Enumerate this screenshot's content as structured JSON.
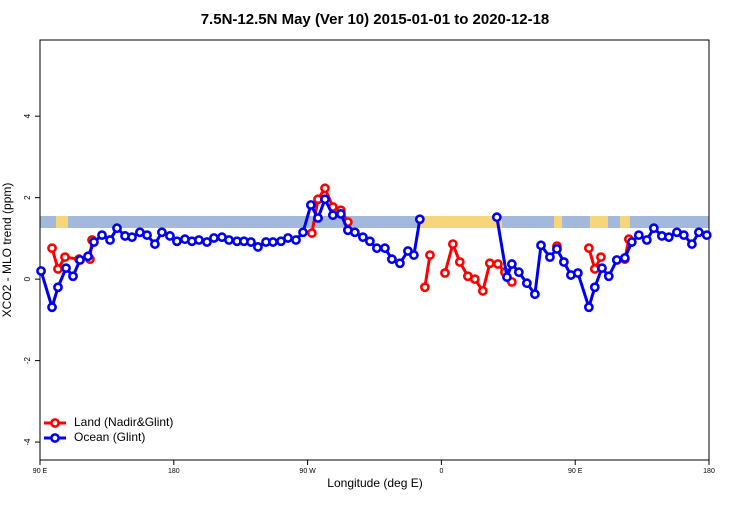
{
  "chart_data": {
    "type": "line",
    "title": "7.5N-12.5N May (Ver 10)   2015-01-01 to 2020-12-18",
    "x_label": "Longitude (deg E)",
    "y_label": "XCO2 - MLO trend (ppm)",
    "xlim": [
      90,
      540
    ],
    "xticks": [
      {
        "value": 90,
        "label": "90 E"
      },
      {
        "value": 180,
        "label": "180"
      },
      {
        "value": 270,
        "label": "90 W"
      },
      {
        "value": 360,
        "label": "0"
      },
      {
        "value": 450,
        "label": "90 E"
      },
      {
        "value": 540,
        "label": "180"
      }
    ],
    "ylim": [
      -4.44,
      5.87
    ],
    "yticks": [
      -4,
      -2,
      0,
      2,
      4
    ],
    "legend": "bottom-left",
    "series": [
      {
        "name": "Land (Nadir&Glint)",
        "color": "#ff0000",
        "x": [
          98.1,
          102.1,
          106.8,
          116.2,
          123.6,
          125.0,
          null,
          272.9,
          277.0,
          281.7,
          287.0,
          292.4,
          297.1,
          null,
          348.9,
          352.3,
          null,
          362.4,
          367.7,
          372.4,
          377.8,
          382.5,
          387.9,
          392.6,
          398.0,
          402.7,
          407.4,
          null,
          437.7,
          null,
          459.2,
          463.2,
          467.3,
          null,
          483.4,
          486.1
        ],
        "values": [
          0.76,
          0.25,
          0.54,
          0.49,
          0.49,
          0.96,
          null,
          1.13,
          1.96,
          2.23,
          1.77,
          1.69,
          1.4,
          null,
          -0.2,
          0.59,
          null,
          0.15,
          0.86,
          0.42,
          0.07,
          0.0,
          -0.29,
          0.39,
          0.37,
          0.17,
          -0.07,
          null,
          0.81,
          null,
          0.76,
          0.25,
          0.54,
          null,
          0.49,
          0.98
        ]
      },
      {
        "name": "Ocean (Glint)",
        "color": "#0000ee",
        "x": [
          90.7,
          98.1,
          102.1,
          107.5,
          112.2,
          116.9,
          122.3,
          126.3,
          131.7,
          137.1,
          141.8,
          147.2,
          151.9,
          157.2,
          162.0,
          167.3,
          172.0,
          177.4,
          182.1,
          187.5,
          192.2,
          196.9,
          202.3,
          207.0,
          212.4,
          217.1,
          222.5,
          227.2,
          231.9,
          236.6,
          242.0,
          246.7,
          252.1,
          256.8,
          262.2,
          266.9,
          272.2,
          277.0,
          281.7,
          287.0,
          292.4,
          297.1,
          301.8,
          307.2,
          311.9,
          316.6,
          322.0,
          326.7,
          332.1,
          337.5,
          341.5,
          345.5,
          null,
          397.3,
          404.1,
          407.4,
          412.1,
          417.5,
          422.9,
          427.0,
          433.0,
          437.7,
          442.4,
          447.1,
          451.8,
          459.2,
          463.2,
          468.0,
          472.6,
          478.0,
          483.4,
          488.1,
          492.8,
          498.2,
          502.9,
          508.3,
          513.0,
          518.4,
          523.1,
          528.5,
          533.2,
          538.5
        ],
        "values": [
          0.2,
          -0.69,
          -0.2,
          0.27,
          0.07,
          0.47,
          0.56,
          0.91,
          1.08,
          0.96,
          1.25,
          1.06,
          1.03,
          1.15,
          1.08,
          0.86,
          1.15,
          1.06,
          0.93,
          0.98,
          0.93,
          0.96,
          0.91,
          1.01,
          1.03,
          0.96,
          0.93,
          0.93,
          0.91,
          0.79,
          0.91,
          0.91,
          0.93,
          1.01,
          0.96,
          1.15,
          1.82,
          1.5,
          1.96,
          1.57,
          1.6,
          1.2,
          1.15,
          1.03,
          0.93,
          0.76,
          0.76,
          0.49,
          0.39,
          0.69,
          0.59,
          1.47,
          null,
          1.52,
          0.05,
          0.37,
          0.17,
          -0.1,
          -0.37,
          0.83,
          0.54,
          0.74,
          0.42,
          0.1,
          0.15,
          -0.69,
          -0.2,
          0.27,
          0.07,
          0.47,
          0.52,
          0.91,
          1.08,
          0.96,
          1.25,
          1.06,
          1.03,
          1.15,
          1.08,
          0.86,
          1.15,
          1.08
        ]
      }
    ]
  }
}
